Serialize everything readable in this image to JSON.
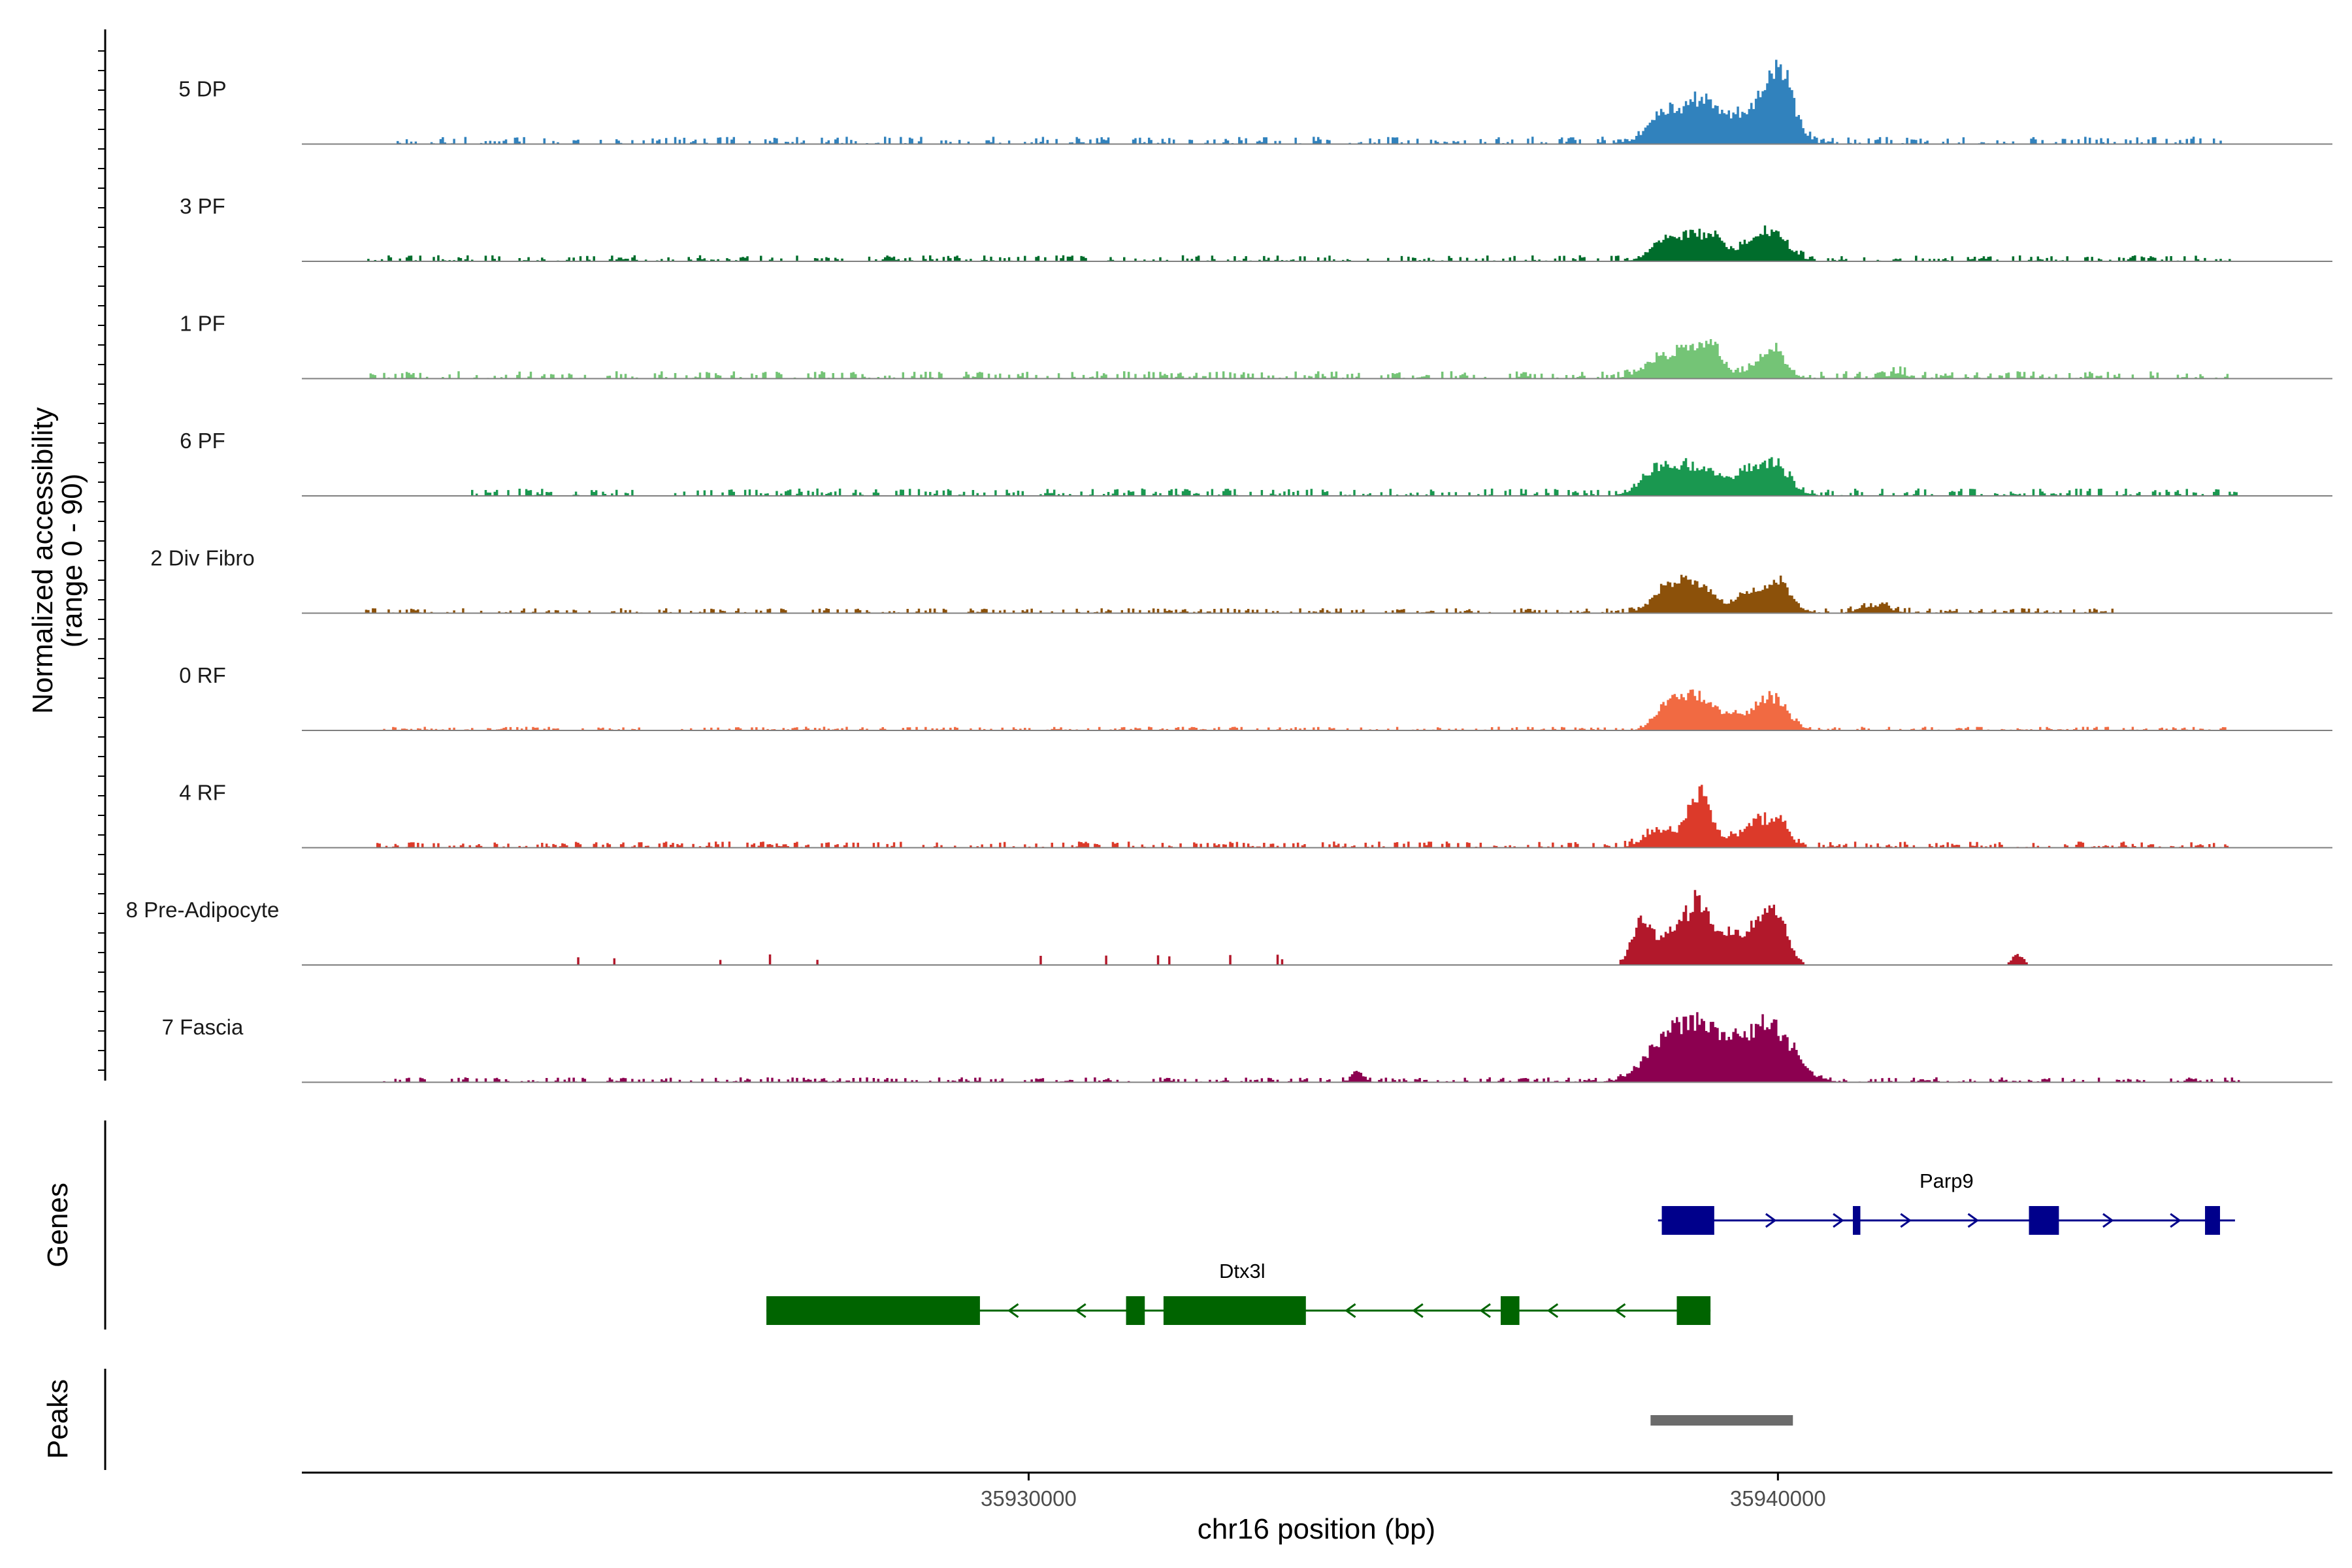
{
  "chart_data": {
    "type": "area",
    "title": "",
    "chromosome": "chr16",
    "xlabel": "chr16 position (bp)",
    "ylabel_line1": "Normalized accessibility",
    "ylabel_line2": "(range 0 - 90)",
    "y_range": [
      0,
      90
    ],
    "x_range": [
      35920300,
      35947400
    ],
    "x_ticks": [
      {
        "value": 35930000,
        "label": "35930000"
      },
      {
        "value": 35940000,
        "label": "35940000"
      }
    ],
    "panel_labels": {
      "genes": "Genes",
      "peaks": "Peaks"
    },
    "series": [
      {
        "name": "5 DP",
        "color": "#3182bd",
        "noise": 6,
        "noise_start": 35921500,
        "noise_end": 35946000,
        "peaks": [
          [
            35938400,
            160,
            14
          ],
          [
            35938850,
            300,
            17
          ],
          [
            35939050,
            400,
            18
          ],
          [
            35939800,
            260,
            26
          ],
          [
            35940050,
            170,
            40
          ]
        ]
      },
      {
        "name": "3 PF",
        "color": "#006d2c",
        "noise": 5,
        "noise_start": 35921100,
        "noise_end": 35946200,
        "peaks": [
          [
            35938500,
            200,
            14
          ],
          [
            35938950,
            260,
            20
          ],
          [
            35939200,
            80,
            8
          ],
          [
            35939650,
            150,
            10
          ],
          [
            35939950,
            200,
            21
          ]
        ]
      },
      {
        "name": "1 PF",
        "color": "#74c476",
        "noise": 6,
        "noise_start": 35921200,
        "noise_end": 35946000,
        "peaks": [
          [
            35938350,
            200,
            10
          ],
          [
            35938900,
            280,
            26
          ],
          [
            35939150,
            80,
            12
          ],
          [
            35939900,
            180,
            22
          ],
          [
            35941600,
            100,
            5
          ]
        ]
      },
      {
        "name": "6 PF",
        "color": "#1a9850",
        "noise": 6,
        "noise_start": 35922500,
        "noise_end": 35946200,
        "peaks": [
          [
            35938400,
            230,
            16
          ],
          [
            35938950,
            320,
            22
          ],
          [
            35939600,
            160,
            14
          ],
          [
            35939950,
            200,
            25
          ]
        ]
      },
      {
        "name": "2 Div Fibro",
        "color": "#8c510a",
        "noise": 4,
        "noise_start": 35921100,
        "noise_end": 35944500,
        "peaks": [
          [
            35938500,
            200,
            14
          ],
          [
            35938900,
            260,
            23
          ],
          [
            35939550,
            120,
            11
          ],
          [
            35939950,
            200,
            25
          ],
          [
            35941300,
            200,
            6
          ]
        ]
      },
      {
        "name": "0 RF",
        "color": "#f16a42",
        "noise": 3,
        "noise_start": 35921300,
        "noise_end": 35946000,
        "peaks": [
          [
            35938550,
            180,
            16
          ],
          [
            35938950,
            260,
            26
          ],
          [
            35939450,
            100,
            8
          ],
          [
            35939900,
            210,
            28
          ]
        ]
      },
      {
        "name": "4 RF",
        "color": "#dc3a2a",
        "noise": 5,
        "noise_start": 35921300,
        "noise_end": 35946000,
        "peaks": [
          [
            35938400,
            180,
            15
          ],
          [
            35938950,
            160,
            45
          ],
          [
            35939750,
            240,
            22
          ],
          [
            35940050,
            100,
            12
          ]
        ]
      },
      {
        "name": "8 Pre-Adipocyte",
        "color": "#b2182b",
        "noise": 0,
        "noise_start": 35921300,
        "noise_end": 35946000,
        "peaks": [
          [
            35938200,
            140,
            36
          ],
          [
            35938550,
            110,
            22
          ],
          [
            35938900,
            170,
            50
          ],
          [
            35939300,
            160,
            22
          ],
          [
            35939750,
            200,
            32
          ],
          [
            35940000,
            150,
            28
          ],
          [
            35943200,
            80,
            8
          ]
        ]
      },
      {
        "name": "7 Fascia",
        "color": "#8c0050",
        "noise": 4,
        "noise_start": 35921300,
        "noise_end": 35946200,
        "peaks": [
          [
            35938400,
            260,
            18
          ],
          [
            35938900,
            330,
            45
          ],
          [
            35939900,
            300,
            45
          ],
          [
            35939400,
            200,
            10
          ],
          [
            35934400,
            80,
            8
          ]
        ]
      }
    ],
    "genes": [
      {
        "name": "Parp9",
        "strand": "+",
        "color": "#00008b",
        "start": 35938400,
        "end": 35946100,
        "exons": [
          [
            35938450,
            35939150
          ],
          [
            35941000,
            35941100
          ],
          [
            35943350,
            35943750
          ],
          [
            35945700,
            35945900
          ]
        ]
      },
      {
        "name": "Dtx3l",
        "strand": "-",
        "color": "#006400",
        "start": 35926500,
        "end": 35939100,
        "exons": [
          [
            35926500,
            35929350
          ],
          [
            35931300,
            35931550
          ],
          [
            35931800,
            35933700
          ],
          [
            35936300,
            35936550
          ],
          [
            35938650,
            35939100
          ]
        ]
      }
    ],
    "peaks": [
      {
        "start": 35938300,
        "end": 35940200,
        "color": "#6b6b6b"
      }
    ]
  }
}
